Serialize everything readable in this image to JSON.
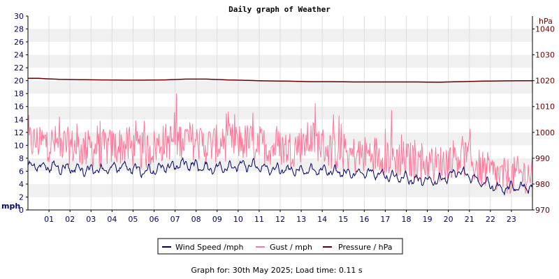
{
  "chart_data": {
    "type": "line",
    "title": "Daily graph of Weather",
    "left_axis": {
      "unit_label": "mph",
      "ylim": [
        0,
        30
      ],
      "ticks": [
        "0",
        "2",
        "4",
        "6",
        "8",
        "10",
        "12",
        "14",
        "16",
        "18",
        "20",
        "22",
        "24",
        "26",
        "28",
        "30"
      ]
    },
    "right_axis": {
      "unit_label": "hPa",
      "ylim": [
        970,
        1045
      ],
      "ticks": [
        "970",
        "980",
        "990",
        "1000",
        "1010",
        "1020",
        "1030",
        "1040"
      ]
    },
    "x_axis": {
      "xlim": [
        0,
        24
      ],
      "ticks": [
        "01",
        "02",
        "03",
        "04",
        "05",
        "06",
        "07",
        "08",
        "09",
        "10",
        "11",
        "12",
        "13",
        "14",
        "15",
        "16",
        "17",
        "18",
        "19",
        "20",
        "21",
        "22",
        "23"
      ]
    },
    "grid": true,
    "legend_position": "bottom-center",
    "series": [
      {
        "name": "Wind Speed /mph",
        "axis": "left",
        "color": "#000066",
        "hourly": [
          6.8,
          6.6,
          6.3,
          6.1,
          6.8,
          6.0,
          6.5,
          7.2,
          6.4,
          6.7,
          6.9,
          6.3,
          6.1,
          6.2,
          6.0,
          5.6,
          5.7,
          5.2,
          4.5,
          4.6,
          5.9,
          4.4,
          3.3,
          3.5
        ]
      },
      {
        "name": "Gust / mph",
        "axis": "left",
        "color": "#ff7799",
        "hourly": [
          10.5,
          10.2,
          9.5,
          9.5,
          10.0,
          9.0,
          10.5,
          11.0,
          10.0,
          10.5,
          10.5,
          9.8,
          9.5,
          11.0,
          9.0,
          8.5,
          8.7,
          8.0,
          7.5,
          7.0,
          8.5,
          6.5,
          5.0,
          5.5
        ]
      },
      {
        "name": "Pressure / hPa",
        "axis": "right",
        "color": "#660000",
        "hourly": [
          1020.9,
          1020.5,
          1020.4,
          1020.3,
          1020.2,
          1020.2,
          1020.3,
          1020.6,
          1020.6,
          1020.3,
          1020.1,
          1019.9,
          1019.8,
          1019.6,
          1019.6,
          1019.5,
          1019.5,
          1019.5,
          1019.5,
          1019.4,
          1019.6,
          1019.8,
          1019.9,
          1020.0
        ]
      }
    ]
  },
  "footer": {
    "text": "Graph for: 30th May 2025; Load time: 0.11 s"
  }
}
